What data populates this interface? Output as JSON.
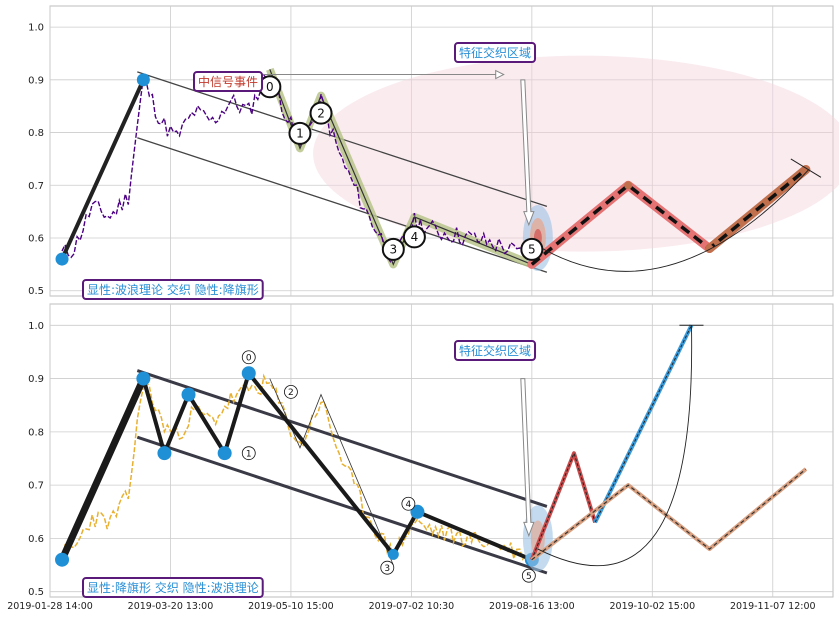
{
  "chart_data": [
    {
      "type": "line",
      "panel": "top",
      "ylim": [
        0.49,
        1.04
      ],
      "yticks": [
        "0.5",
        "0.6",
        "0.7",
        "0.8",
        "0.9",
        "1.0"
      ],
      "ytick_values": [
        0.5,
        0.6,
        0.7,
        0.8,
        0.9,
        1.0
      ],
      "grid": true,
      "annotations": {
        "event_label": "中信号事件",
        "zone_label": "特征交织区域",
        "pattern_label": "显性:波浪理论 交织 隐性:降旗形"
      },
      "wave_labels": [
        "0",
        "1",
        "2",
        "3",
        "4",
        "5"
      ],
      "waves": [
        {
          "label": "0",
          "x": 73,
          "y": 0.92
        },
        {
          "label": "1",
          "x": 83,
          "y": 0.77
        },
        {
          "label": "2",
          "x": 90,
          "y": 0.87
        },
        {
          "label": "3",
          "x": 114,
          "y": 0.55
        },
        {
          "label": "4",
          "x": 121,
          "y": 0.64
        },
        {
          "label": "5",
          "x": 160,
          "y": 0.55
        }
      ],
      "trend_points": [
        {
          "x": 4,
          "y": 0.56
        },
        {
          "x": 31,
          "y": 0.9
        }
      ],
      "prediction": [
        {
          "x": 160,
          "y": 0.55
        },
        {
          "x": 192,
          "y": 0.7
        },
        {
          "x": 219,
          "y": 0.58
        },
        {
          "x": 251,
          "y": 0.73
        }
      ],
      "channel_lines": [
        [
          {
            "x": 29,
            "y": 0.915
          },
          {
            "x": 165,
            "y": 0.66
          }
        ],
        [
          {
            "x": 29,
            "y": 0.79
          },
          {
            "x": 165,
            "y": 0.535
          }
        ]
      ],
      "colors": {
        "price": "#4b0082",
        "prediction_fill": "#e57373",
        "prediction_alt": "#c0704c",
        "wave_fill": "#b7c48a",
        "zone": "#f3d3dc"
      }
    },
    {
      "type": "line",
      "panel": "bottom",
      "ylim": [
        0.49,
        1.04
      ],
      "yticks": [
        "0.5",
        "0.6",
        "0.7",
        "0.8",
        "0.9",
        "1.0"
      ],
      "ytick_values": [
        0.5,
        0.6,
        0.7,
        0.8,
        0.9,
        1.0
      ],
      "xticks": [
        "2019-01-28 14:00",
        "2019-03-20 13:00",
        "2019-05-10 15:00",
        "2019-07-02 10:30",
        "2019-08-16 13:00",
        "2019-10-02 15:00",
        "2019-11-07 12:00"
      ],
      "grid": true,
      "annotations": {
        "zone_label": "特征交织区域",
        "pattern_label": "显性:降旗形 交织 隐性:波浪理论"
      },
      "wave_labels": [
        "0",
        "1",
        "2",
        "3",
        "4",
        "5"
      ],
      "pivots": [
        {
          "x": 4,
          "y": 0.56
        },
        {
          "x": 31,
          "y": 0.9
        },
        {
          "x": 38,
          "y": 0.76
        },
        {
          "x": 46,
          "y": 0.87
        },
        {
          "x": 58,
          "y": 0.76
        },
        {
          "x": 66,
          "y": 0.91
        },
        {
          "x": 114,
          "y": 0.57
        },
        {
          "x": 122,
          "y": 0.65
        },
        {
          "x": 160,
          "y": 0.56
        }
      ],
      "prediction_red": [
        {
          "x": 160,
          "y": 0.56
        },
        {
          "x": 174,
          "y": 0.76
        },
        {
          "x": 181,
          "y": 0.63
        }
      ],
      "prediction_blue": [
        {
          "x": 181,
          "y": 0.63
        },
        {
          "x": 213,
          "y": 1.0
        }
      ],
      "prediction_orange": [
        {
          "x": 160,
          "y": 0.56
        },
        {
          "x": 192,
          "y": 0.7
        },
        {
          "x": 219,
          "y": 0.58
        },
        {
          "x": 251,
          "y": 0.73
        }
      ],
      "channel_lines": [
        [
          {
            "x": 29,
            "y": 0.915
          },
          {
            "x": 165,
            "y": 0.66
          }
        ],
        [
          {
            "x": 29,
            "y": 0.79
          },
          {
            "x": 165,
            "y": 0.535
          }
        ]
      ],
      "colors": {
        "price": "#e8b030",
        "prediction_red": "#c84a4a",
        "prediction_blue": "#3a9ad9",
        "prediction_orange": "#d8a080",
        "pivot": "#1f8fd6"
      }
    }
  ]
}
